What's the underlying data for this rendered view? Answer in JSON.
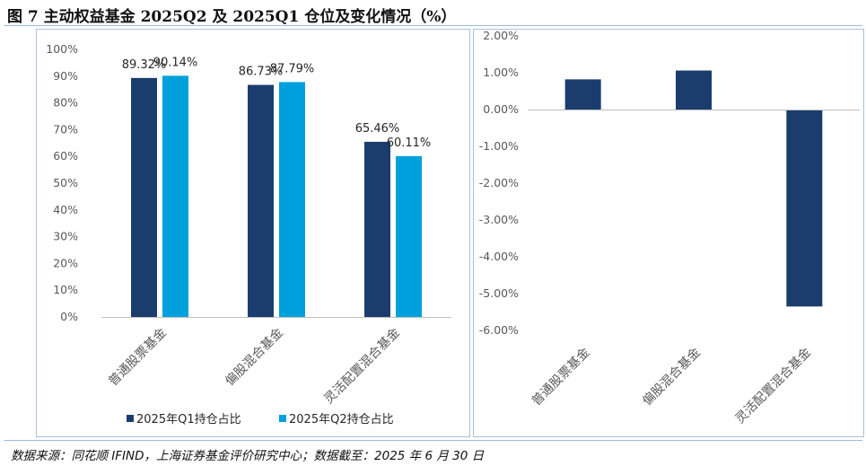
{
  "title": "图 7  主动权益基金 2025Q2 及 2025Q1 仓位及变化情况（%）",
  "source": "数据来源：同花顺 IFIND，上海证券基金评价研究中心；数据截至：2025 年 6 月 30 日",
  "colors": {
    "q1": "#1b3d6d",
    "q2": "#00a0dc",
    "change": "#1b3d6d",
    "axis": "#bfbfbf",
    "tick_text": "#595959"
  },
  "chart_data": [
    {
      "type": "bar",
      "categories": [
        "普通股票基金",
        "偏股混合基金",
        "灵活配置混合基金"
      ],
      "series": [
        {
          "name": "2025年Q1持仓占比",
          "values": [
            89.32,
            86.73,
            65.46
          ]
        },
        {
          "name": "2025年Q2持仓占比",
          "values": [
            90.14,
            87.79,
            60.11
          ]
        }
      ],
      "data_labels": [
        [
          "89.32%",
          "86.73%",
          "65.46%"
        ],
        [
          "90.14%",
          "87.79%",
          "60.11%"
        ]
      ],
      "ylim": [
        0,
        100
      ],
      "yticks": [
        "0%",
        "10%",
        "20%",
        "30%",
        "40%",
        "50%",
        "60%",
        "70%",
        "80%",
        "90%",
        "100%"
      ],
      "legend_position": "bottom",
      "grid": false
    },
    {
      "type": "bar",
      "categories": [
        "普通股票基金",
        "偏股混合基金",
        "灵活配置混合基金"
      ],
      "values": [
        0.82,
        1.06,
        -5.35
      ],
      "ylim": [
        -6,
        2
      ],
      "yticks": [
        "2.00%",
        "1.00%",
        "0.00%",
        "-1.00%",
        "-2.00%",
        "-3.00%",
        "-4.00%",
        "-5.00%",
        "-6.00%"
      ],
      "grid": false
    }
  ]
}
